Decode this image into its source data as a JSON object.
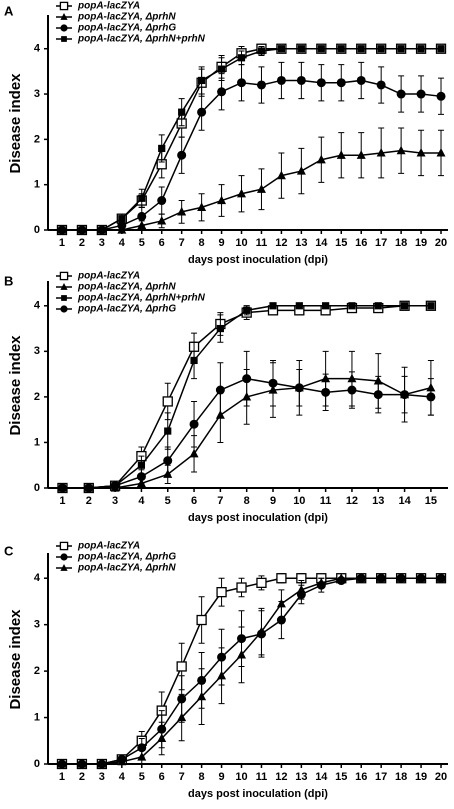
{
  "chart_data": [
    {
      "type": "line",
      "title": "A",
      "ylabel": "Disease index",
      "xlabel": "days post  inoculation (dpi)",
      "x": [
        1,
        2,
        3,
        4,
        5,
        6,
        7,
        8,
        9,
        10,
        11,
        12,
        13,
        14,
        15,
        16,
        17,
        18,
        19,
        20
      ],
      "xlim": [
        0.3,
        20.35
      ],
      "xticks": [
        1,
        2,
        3,
        4,
        5,
        6,
        7,
        8,
        9,
        10,
        11,
        12,
        13,
        14,
        15,
        16,
        17,
        18,
        19,
        20
      ],
      "ylim": [
        0,
        4.7
      ],
      "yticks": [
        0,
        1,
        2,
        3,
        4
      ],
      "series": [
        {
          "name": "popA-lacZYA",
          "color": "#000000",
          "marker": "open-square",
          "values": [
            0,
            0,
            0,
            0.25,
            0.65,
            1.45,
            2.35,
            3.25,
            3.6,
            3.9,
            4,
            4,
            4,
            4,
            4,
            4,
            4,
            4,
            4,
            4
          ],
          "errors": [
            0,
            0,
            0,
            0.1,
            0.15,
            0.3,
            0.3,
            0.3,
            0.25,
            0.15,
            0.1,
            0,
            0,
            0,
            0,
            0,
            0,
            0,
            0,
            0
          ]
        },
        {
          "name": "popA-lacZYA, ΔprhN",
          "color": "#000000",
          "marker": "triangle",
          "values": [
            0,
            0,
            0,
            0,
            0.1,
            0.2,
            0.4,
            0.5,
            0.65,
            0.8,
            0.9,
            1.2,
            1.3,
            1.55,
            1.65,
            1.65,
            1.7,
            1.75,
            1.7,
            1.7
          ],
          "errors": [
            0,
            0,
            0,
            0,
            0.1,
            0.15,
            0.25,
            0.3,
            0.35,
            0.4,
            0.45,
            0.5,
            0.5,
            0.5,
            0.5,
            0.5,
            0.55,
            0.5,
            0.5,
            0.5
          ]
        },
        {
          "name": "popA-lacZYA, ΔprhG",
          "color": "#000000",
          "marker": "circle",
          "values": [
            0,
            0,
            0,
            0.1,
            0.3,
            0.65,
            1.65,
            2.6,
            3.05,
            3.25,
            3.2,
            3.3,
            3.3,
            3.25,
            3.25,
            3.3,
            3.2,
            3,
            3,
            2.95
          ],
          "errors": [
            0,
            0,
            0,
            0.1,
            0.2,
            0.3,
            0.4,
            0.4,
            0.4,
            0.4,
            0.4,
            0.4,
            0.4,
            0.4,
            0.4,
            0.4,
            0.4,
            0.4,
            0.4,
            0.4
          ]
        },
        {
          "name": "popA-lacZYA, ΔprhN+prhN",
          "color": "#000000",
          "marker": "square",
          "values": [
            0,
            0,
            0,
            0.25,
            0.7,
            1.8,
            2.6,
            3.3,
            3.55,
            3.8,
            3.95,
            4,
            4,
            4,
            4,
            4,
            4,
            4,
            4,
            4
          ],
          "errors": [
            0,
            0,
            0,
            0.1,
            0.2,
            0.3,
            0.3,
            0.3,
            0.25,
            0.15,
            0.1,
            0,
            0,
            0,
            0,
            0,
            0,
            0,
            0,
            0
          ]
        }
      ]
    },
    {
      "type": "line",
      "title": "B",
      "ylabel": "Disease index",
      "xlabel": "days post  inoculation (dpi)",
      "x": [
        1,
        2,
        3,
        4,
        5,
        6,
        7,
        8,
        9,
        10,
        11,
        12,
        13,
        14,
        15
      ],
      "xlim": [
        0.45,
        15.65
      ],
      "xticks": [
        1,
        2,
        3,
        4,
        5,
        6,
        7,
        8,
        9,
        10,
        11,
        12,
        13,
        14,
        15
      ],
      "ylim": [
        0,
        4.5
      ],
      "yticks": [
        0,
        1,
        2,
        3,
        4
      ],
      "series": [
        {
          "name": "popA-lacZYA",
          "color": "#000000",
          "marker": "open-square",
          "values": [
            0,
            0,
            0.05,
            0.7,
            1.9,
            3.1,
            3.6,
            3.85,
            3.9,
            3.9,
            3.9,
            3.95,
            3.95,
            4,
            4
          ],
          "errors": [
            0,
            0,
            0.05,
            0.2,
            0.4,
            0.3,
            0.25,
            0.15,
            0.1,
            0.1,
            0.1,
            0.05,
            0.05,
            0,
            0
          ]
        },
        {
          "name": "popA-lacZYA, ΔprhN",
          "color": "#000000",
          "marker": "triangle",
          "values": [
            0,
            0,
            0,
            0.1,
            0.3,
            0.75,
            1.6,
            2,
            2.15,
            2.2,
            2.4,
            2.4,
            2.35,
            2.05,
            2.2
          ],
          "errors": [
            0,
            0,
            0,
            0.1,
            0.2,
            0.4,
            0.6,
            0.6,
            0.6,
            0.6,
            0.6,
            0.6,
            0.6,
            0.6,
            0.6
          ]
        },
        {
          "name": "popA-lacZYA, ΔprhN+prhN",
          "color": "#000000",
          "marker": "square",
          "values": [
            0,
            0,
            0.05,
            0.5,
            1.25,
            2.8,
            3.5,
            3.9,
            4,
            4,
            4,
            4,
            4,
            4,
            4
          ],
          "errors": [
            0,
            0,
            0.05,
            0.2,
            0.4,
            0.4,
            0.3,
            0.1,
            0,
            0,
            0,
            0,
            0,
            0,
            0
          ]
        },
        {
          "name": "popA-lacZYA, ΔprhG",
          "color": "#000000",
          "marker": "circle",
          "values": [
            0,
            0,
            0.05,
            0.25,
            0.6,
            1.4,
            2.15,
            2.4,
            2.3,
            2.2,
            2.1,
            2.15,
            2.05,
            2.05,
            2
          ],
          "errors": [
            0,
            0,
            0.05,
            0.15,
            0.3,
            0.5,
            0.6,
            0.6,
            0.5,
            0.4,
            0.4,
            0.4,
            0.4,
            0.4,
            0.4
          ]
        }
      ]
    },
    {
      "type": "line",
      "title": "C",
      "ylabel": "Disease index",
      "xlabel": "days post  inoculation (dpi)",
      "x": [
        1,
        2,
        3,
        4,
        5,
        6,
        7,
        8,
        9,
        10,
        11,
        12,
        13,
        14,
        15,
        16,
        17,
        18,
        19,
        20
      ],
      "xlim": [
        0.3,
        20.35
      ],
      "xticks": [
        1,
        2,
        3,
        4,
        5,
        6,
        7,
        8,
        9,
        10,
        11,
        12,
        13,
        14,
        15,
        16,
        17,
        18,
        19,
        20
      ],
      "ylim": [
        0,
        4.5
      ],
      "yticks": [
        0,
        1,
        2,
        3,
        4
      ],
      "series": [
        {
          "name": "popA-lacZYA",
          "color": "#000000",
          "marker": "open-square",
          "values": [
            0,
            0,
            0,
            0.1,
            0.5,
            1.15,
            2.1,
            3.1,
            3.7,
            3.8,
            3.9,
            4,
            4,
            4,
            4,
            4,
            4,
            4,
            4,
            4
          ],
          "errors": [
            0,
            0,
            0,
            0.05,
            0.2,
            0.4,
            0.5,
            0.5,
            0.3,
            0.2,
            0.15,
            0.1,
            0.1,
            0,
            0,
            0,
            0,
            0,
            0,
            0
          ]
        },
        {
          "name": "popA-lacZYA, ΔprhG",
          "color": "#000000",
          "marker": "circle",
          "values": [
            0,
            0,
            0,
            0.1,
            0.35,
            0.75,
            1.4,
            1.8,
            2.3,
            2.7,
            2.8,
            3.1,
            3.65,
            3.85,
            3.95,
            4,
            4,
            4,
            4,
            4
          ],
          "errors": [
            0,
            0,
            0,
            0.05,
            0.2,
            0.4,
            0.5,
            0.6,
            0.6,
            0.6,
            0.5,
            0.4,
            0.2,
            0.15,
            0.05,
            0,
            0,
            0,
            0,
            0
          ]
        },
        {
          "name": "popA-lacZYA, ΔprhN",
          "color": "#000000",
          "marker": "triangle",
          "values": [
            0,
            0,
            0,
            0.05,
            0.15,
            0.55,
            1,
            1.45,
            1.9,
            2.35,
            2.85,
            3.45,
            3.75,
            3.9,
            4,
            4,
            4,
            4,
            4,
            4
          ],
          "errors": [
            0,
            0,
            0,
            0.05,
            0.15,
            0.35,
            0.5,
            0.6,
            0.6,
            0.6,
            0.5,
            0.3,
            0.2,
            0.1,
            0,
            0,
            0,
            0,
            0,
            0
          ]
        }
      ]
    }
  ]
}
